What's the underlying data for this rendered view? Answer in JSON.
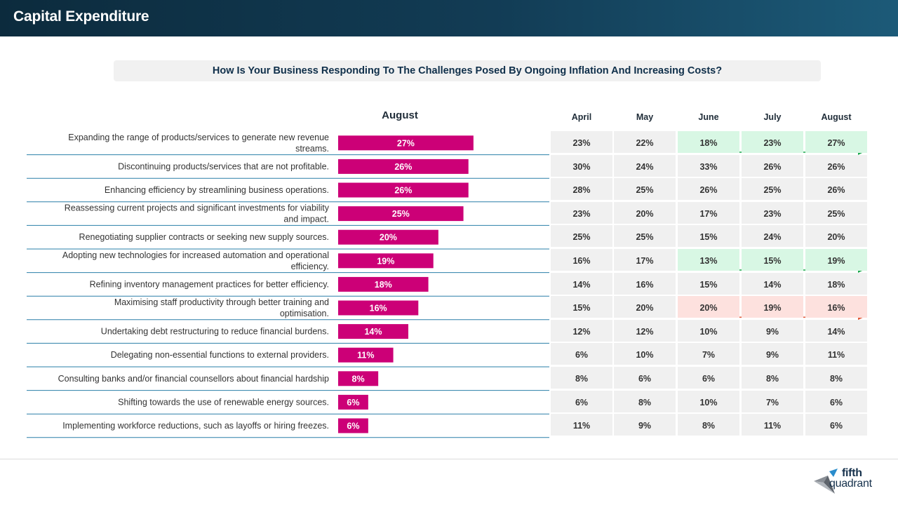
{
  "header": {
    "title": "Capital Expenditure"
  },
  "question": "How Is Your Business Responding To The Challenges Posed By Ongoing Inflation And Increasing Costs?",
  "colors": {
    "bar": "#cc0077",
    "up_fill": "#d8f7e4",
    "up_arrow": "#18a64a",
    "down_fill": "#fde1de",
    "down_arrow": "#e05a3a",
    "divider": "#2a7fa8"
  },
  "chart_data": {
    "type": "bar",
    "title": "August",
    "xlim": [
      0,
      35
    ],
    "categories": [
      "Expanding the range of products/services to generate new revenue streams.",
      "Discontinuing products/services that are not profitable.",
      "Enhancing efficiency by streamlining business operations.",
      "Reassessing current projects and significant investments for viability and impact.",
      "Renegotiating supplier contracts or seeking new supply sources.",
      "Adopting new technologies for increased automation and operational efficiency.",
      "Refining inventory management practices for better efficiency.",
      "Maximising staff productivity through better training and optimisation.",
      "Undertaking debt restructuring to reduce financial burdens.",
      "Delegating non-essential functions to external providers.",
      "Consulting banks and/or financial counsellors about financial hardship",
      "Shifting towards the use of renewable energy sources.",
      "Implementing workforce reductions, such as layoffs or hiring freezes."
    ],
    "values": [
      27,
      26,
      26,
      25,
      20,
      19,
      18,
      16,
      14,
      11,
      8,
      6,
      6
    ],
    "labels": [
      "27%",
      "26%",
      "26%",
      "25%",
      "20%",
      "19%",
      "18%",
      "16%",
      "14%",
      "11%",
      "8%",
      "6%",
      "6%"
    ]
  },
  "table": {
    "months": [
      "April",
      "May",
      "June",
      "July",
      "August"
    ],
    "rows": [
      [
        "23%",
        "22%",
        "18%",
        "23%",
        "27%"
      ],
      [
        "30%",
        "24%",
        "33%",
        "26%",
        "26%"
      ],
      [
        "28%",
        "25%",
        "26%",
        "25%",
        "26%"
      ],
      [
        "23%",
        "20%",
        "17%",
        "23%",
        "25%"
      ],
      [
        "25%",
        "25%",
        "15%",
        "24%",
        "20%"
      ],
      [
        "16%",
        "17%",
        "13%",
        "15%",
        "19%"
      ],
      [
        "14%",
        "16%",
        "15%",
        "14%",
        "18%"
      ],
      [
        "15%",
        "20%",
        "20%",
        "19%",
        "16%"
      ],
      [
        "12%",
        "12%",
        "10%",
        "9%",
        "14%"
      ],
      [
        "6%",
        "10%",
        "7%",
        "9%",
        "11%"
      ],
      [
        "8%",
        "6%",
        "6%",
        "8%",
        "8%"
      ],
      [
        "6%",
        "8%",
        "10%",
        "7%",
        "6%"
      ],
      [
        "11%",
        "9%",
        "8%",
        "11%",
        "6%"
      ]
    ],
    "trends": [
      {
        "row": 0,
        "direction": "up"
      },
      {
        "row": 5,
        "direction": "up"
      },
      {
        "row": 7,
        "direction": "down"
      }
    ]
  },
  "logo": {
    "line1": "fifth",
    "line2": "quadrant"
  }
}
